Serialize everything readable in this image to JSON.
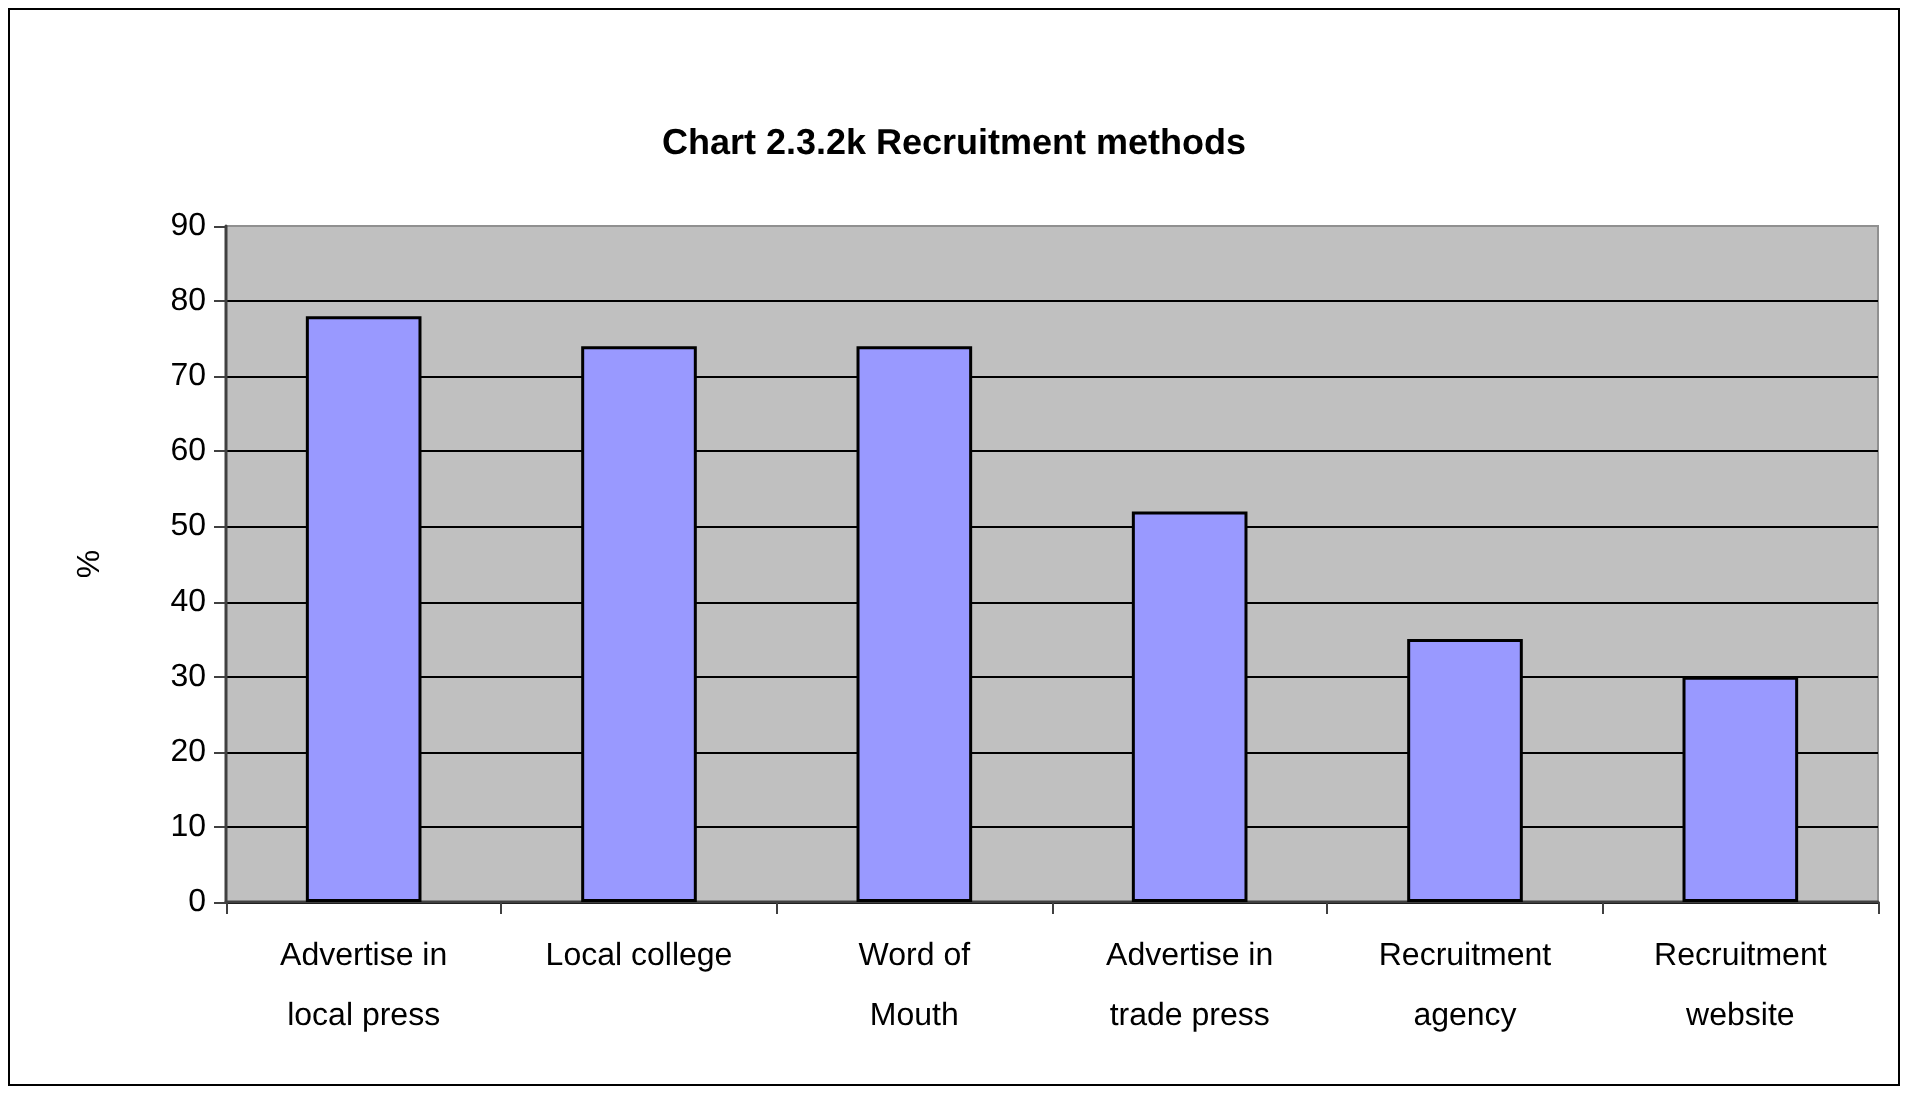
{
  "chart_data": {
    "type": "bar",
    "title": "Chart 2.3.2k Recruitment methods",
    "ylabel": "%",
    "categories": [
      "Advertise in\nlocal press",
      "Local college",
      "Word of\nMouth",
      "Advertise in\ntrade press",
      "Recruitment\nagency",
      "Recruitment\nwebsite"
    ],
    "values": [
      78,
      74,
      74,
      52,
      35,
      30
    ],
    "color": "#9999ff",
    "ylim": [
      0,
      90
    ],
    "yticks": [
      0,
      10,
      20,
      30,
      40,
      50,
      60,
      70,
      80,
      90
    ],
    "grid": "y"
  }
}
